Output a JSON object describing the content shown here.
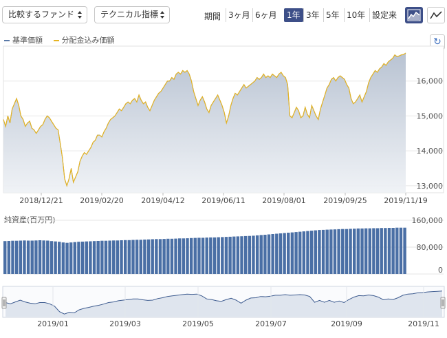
{
  "toolbar": {
    "compare_label": "比較するファンド",
    "technical_label": "テクニカル指標",
    "period_label": "期間",
    "periods": [
      "3ヶ月",
      "6ヶ月",
      "1年",
      "3年",
      "5年",
      "10年",
      "設定来"
    ],
    "active_period": "1年"
  },
  "legend": {
    "nav_label": "基準価額",
    "nav_color": "#5a7aa8",
    "dist_label": "分配金込み価額",
    "dist_color": "#e6b422"
  },
  "volume_label": "純資産(百万円)",
  "colors": {
    "accent": "#3d4f88",
    "area_fill": "#c5cdd9",
    "bar": "#4a6fa5",
    "line": "#e6b422"
  },
  "chart_data": [
    {
      "type": "area",
      "y_ticks": [
        13000,
        14000,
        15000,
        16000
      ],
      "y_tick_labels": [
        "13,000",
        "14,000",
        "15,000",
        "16,000"
      ],
      "ylim": [
        12800,
        17000
      ],
      "x_tick_labels": [
        "2018/12/21",
        "2019/02/20",
        "2019/04/12",
        "2019/06/11",
        "2019/08/01",
        "2019/09/25",
        "2019/11/19"
      ],
      "series": [
        {
          "name": "基準価額",
          "values": [
            14900,
            14700,
            15000,
            14800,
            15200,
            15350,
            15500,
            15300,
            15000,
            14900,
            14700,
            14800,
            14850,
            14650,
            14600,
            14500,
            14600,
            14700,
            14750,
            14900,
            15000,
            14950,
            14850,
            14750,
            14650,
            14600,
            14200,
            13800,
            13200,
            13000,
            13200,
            13500,
            13100,
            13250,
            13400,
            13700,
            13850,
            13950,
            13900,
            14000,
            14100,
            14250,
            14300,
            14450,
            14450,
            14400,
            14550,
            14650,
            14800,
            14900,
            14950,
            15000,
            15100,
            15200,
            15150,
            15250,
            15350,
            15400,
            15350,
            15450,
            15500,
            15400,
            15600,
            15450,
            15350,
            15400,
            15250,
            15150,
            15300,
            15450,
            15550,
            15650,
            15700,
            15800,
            15900,
            16000,
            16000,
            16100,
            16050,
            16200,
            16250,
            16200,
            16300,
            16250,
            16300,
            16200,
            16000,
            15700,
            15500,
            15300,
            15450,
            15550,
            15400,
            15200,
            15100,
            15300,
            15400,
            15500,
            15600,
            15450,
            15300,
            15100,
            14800,
            15000,
            15300,
            15500,
            15650,
            15600,
            15700,
            15800,
            15900,
            15800,
            15850,
            15900,
            15950,
            16000,
            16100,
            16050,
            16100,
            16200,
            16100,
            16150,
            16100,
            16200,
            16150,
            16100,
            16200,
            16250,
            16150,
            16100,
            15900,
            15000,
            14950,
            15100,
            15250,
            15150,
            14950,
            15000,
            15250,
            15050,
            14950,
            15300,
            15150,
            15000,
            14900,
            15200,
            15400,
            15600,
            15800,
            15900,
            16050,
            16100,
            16000,
            16100,
            16150,
            16100,
            16050,
            15900,
            15800,
            15500,
            15350,
            15400,
            15500,
            15600,
            15400,
            15550,
            15700,
            15950,
            16100,
            16200,
            16300,
            16250,
            16350,
            16400,
            16500,
            16450,
            16550,
            16600,
            16650,
            16750,
            16700,
            16720,
            16750,
            16760,
            16800
          ]
        }
      ]
    },
    {
      "type": "bar",
      "y_ticks": [
        0,
        80000,
        160000
      ],
      "y_tick_labels": [
        "0",
        "80,000",
        "160,000"
      ],
      "ylim": [
        0,
        160000
      ],
      "series": [
        {
          "name": "純資産(百万円)",
          "values": [
            98000,
            98500,
            99000,
            99000,
            99500,
            100000,
            99500,
            99500,
            100000,
            100500,
            100000,
            99500,
            98000,
            97000,
            96000,
            94000,
            93000,
            94000,
            95000,
            96000,
            96500,
            97000,
            97500,
            98000,
            98500,
            99000,
            99000,
            99500,
            100000,
            100000,
            100500,
            101000,
            101000,
            101500,
            102000,
            102000,
            102500,
            103000,
            103500,
            104000,
            104000,
            104500,
            105000,
            105000,
            105500,
            106000,
            106000,
            106500,
            107000,
            107500,
            108000,
            108000,
            108500,
            109000,
            109000,
            109500,
            110000,
            110500,
            111000,
            111500,
            112000,
            112500,
            113000,
            113500,
            114000,
            115000,
            116000,
            117000,
            118000,
            119000,
            120000,
            121000,
            122000,
            123000,
            124000,
            125000,
            126000,
            127000,
            128000,
            129000,
            130000,
            131000,
            131500,
            132000,
            132500,
            133000,
            133500,
            134000,
            134000,
            134500,
            135000,
            135500,
            135500,
            136000,
            136000,
            136500,
            136500,
            137000,
            137000,
            137500,
            137500,
            138000,
            138000,
            138000
          ]
        }
      ]
    },
    {
      "type": "line",
      "x_tick_labels": [
        "2019/01",
        "2019/03",
        "2019/05",
        "2019/07",
        "2019/09",
        "2019/11"
      ],
      "series": [
        {
          "name": "navigator",
          "values": [
            14900,
            14700,
            15000,
            15300,
            15000,
            14800,
            14700,
            14900,
            14900,
            14700,
            14300,
            13400,
            13000,
            13300,
            13200,
            13700,
            13950,
            14100,
            14300,
            14450,
            14650,
            14900,
            15000,
            15200,
            15300,
            15400,
            15500,
            15500,
            15350,
            15250,
            15300,
            15550,
            15700,
            15900,
            16000,
            16100,
            16200,
            16300,
            16250,
            16300,
            16000,
            15500,
            15400,
            15200,
            15100,
            15400,
            15600,
            15300,
            14800,
            15300,
            15650,
            15700,
            15900,
            15850,
            15950,
            16100,
            16100,
            16200,
            16100,
            16150,
            16200,
            16150,
            15900,
            14950,
            15250,
            14950,
            15250,
            14950,
            15150,
            14900,
            15400,
            15800,
            16050,
            16000,
            16150,
            16050,
            15800,
            15350,
            15500,
            15400,
            15700,
            16100,
            16300,
            16350,
            16500,
            16550,
            16650,
            16700,
            16750,
            16800
          ]
        }
      ]
    }
  ]
}
